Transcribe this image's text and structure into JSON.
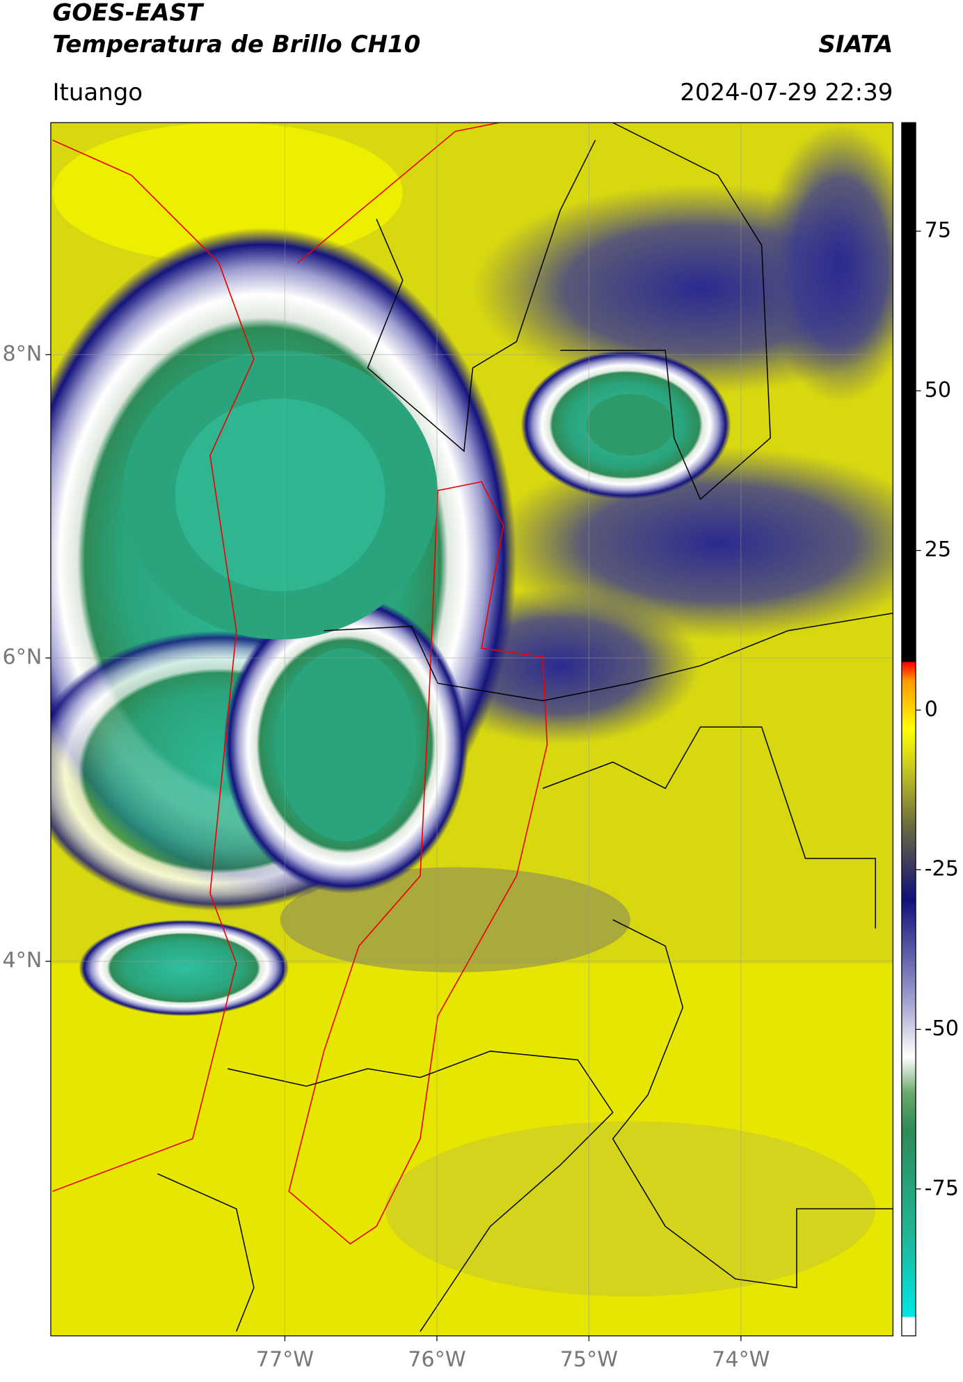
{
  "header": {
    "title": "GOES-EAST",
    "subtitle": "Temperatura de Brillo CH10",
    "organization": "SIATA",
    "location": "Ituango",
    "datetime": "2024-07-29 22:39"
  },
  "map": {
    "xlim": [
      -78.54,
      -73.0
    ],
    "ylim": [
      1.53,
      9.53
    ],
    "xticks": [
      {
        "value": -77,
        "label": "77°W"
      },
      {
        "value": -76,
        "label": "76°W"
      },
      {
        "value": -75,
        "label": "75°W"
      },
      {
        "value": -74,
        "label": "74°W"
      }
    ],
    "yticks": [
      {
        "value": 8,
        "label": "8°N"
      },
      {
        "value": 6,
        "label": "6°N"
      },
      {
        "value": 4,
        "label": "4°N"
      }
    ],
    "grid": true
  },
  "colorbar": {
    "lim": [
      -98,
      92
    ],
    "ticks": [
      75,
      50,
      25,
      0,
      -25,
      -50,
      -75
    ]
  }
}
